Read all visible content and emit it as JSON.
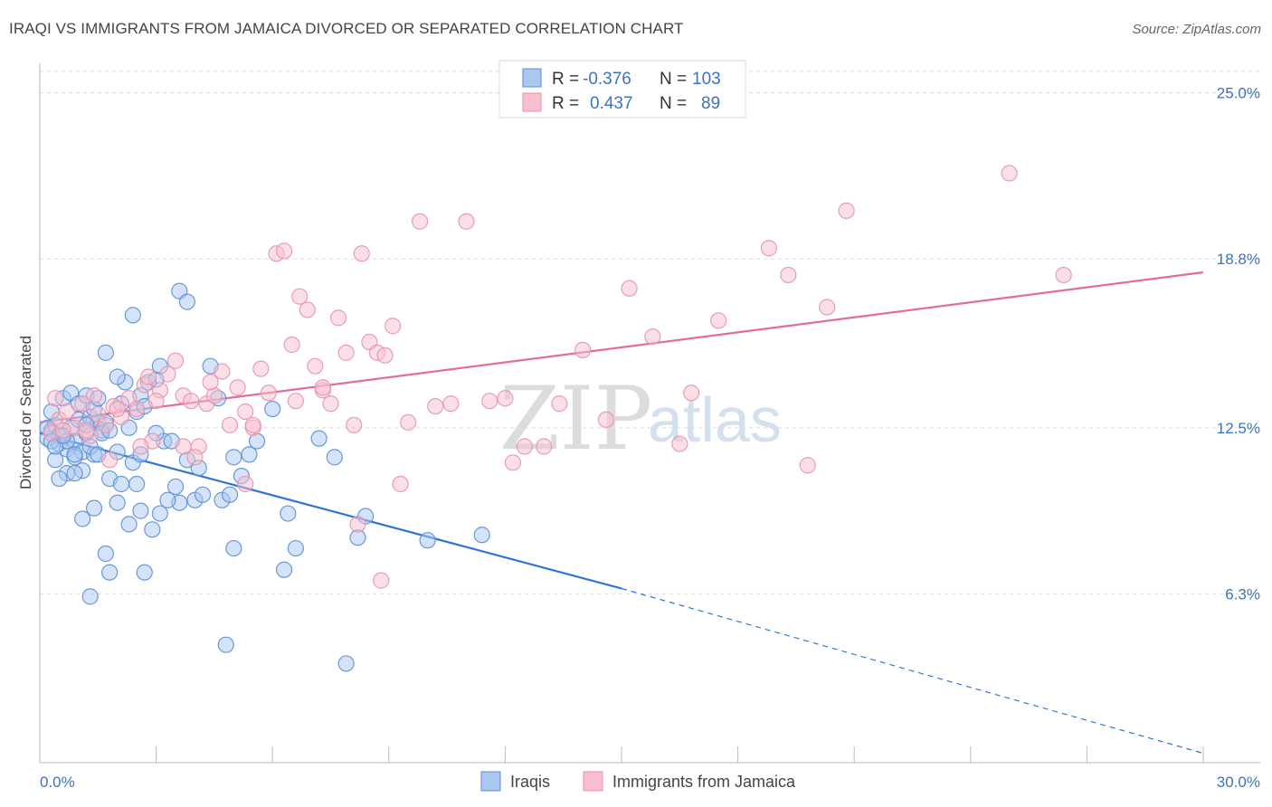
{
  "title": "IRAQI VS IMMIGRANTS FROM JAMAICA DIVORCED OR SEPARATED CORRELATION CHART",
  "source": "Source: ZipAtlas.com",
  "watermark": {
    "zip": "ZIP",
    "atlas": "atlas"
  },
  "colors": {
    "blue_fill": "#a9c7ef",
    "blue_stroke": "#5b8fd6",
    "blue_line": "#2f76d2",
    "pink_fill": "#f7bfd0",
    "pink_stroke": "#e892ae",
    "pink_line": "#e36d98",
    "tick_text": "#3b73c4",
    "grid": "#dddddd"
  },
  "legend": {
    "rows": [
      {
        "r_label": "R =",
        "r_value": "-0.376",
        "n_label": "N =",
        "n_value": "103"
      },
      {
        "r_label": "R =",
        "r_value": "0.437",
        "n_label": "N =",
        "n_value": "89"
      }
    ]
  },
  "chart_data": {
    "type": "scatter",
    "title": "IRAQI VS IMMIGRANTS FROM JAMAICA DIVORCED OR SEPARATED CORRELATION CHART",
    "xlabel": "",
    "ylabel": "Divorced or Separated",
    "xlim": [
      0,
      30
    ],
    "ylim": [
      0,
      26.1
    ],
    "x_tick_labels": [
      "0.0%",
      "30.0%"
    ],
    "y_ticks": [
      6.3,
      12.5,
      18.8,
      25.0
    ],
    "y_tick_labels": [
      "6.3%",
      "12.5%",
      "18.8%",
      "25.0%"
    ],
    "grid": "horizontal dashed",
    "legend_position": "bottom-center",
    "series": [
      {
        "name": "Iraqis",
        "color": "#a9c7ef",
        "trend": {
          "x0": 0,
          "y0": 12.3,
          "x1": 15.0,
          "y1": 6.5,
          "dash_to_x": 30.0,
          "dash_to_y": 0.35
        },
        "points": [
          [
            0.2,
            12.1
          ],
          [
            0.3,
            12.4
          ],
          [
            0.4,
            12.6
          ],
          [
            0.5,
            11.9
          ],
          [
            0.6,
            12.2
          ],
          [
            0.7,
            11.7
          ],
          [
            0.8,
            12.5
          ],
          [
            0.9,
            12.0
          ],
          [
            1.0,
            12.8
          ],
          [
            1.1,
            11.6
          ],
          [
            1.2,
            12.3
          ],
          [
            1.3,
            12.9
          ],
          [
            1.4,
            11.5
          ],
          [
            1.5,
            12.7
          ],
          [
            0.3,
            13.1
          ],
          [
            0.6,
            13.6
          ],
          [
            0.8,
            13.8
          ],
          [
            1.0,
            13.4
          ],
          [
            1.2,
            13.7
          ],
          [
            1.4,
            13.2
          ],
          [
            0.4,
            11.3
          ],
          [
            0.7,
            10.8
          ],
          [
            0.9,
            11.4
          ],
          [
            1.1,
            10.9
          ],
          [
            1.3,
            11.8
          ],
          [
            1.5,
            13.6
          ],
          [
            1.6,
            12.4
          ],
          [
            1.7,
            12.7
          ],
          [
            1.8,
            10.6
          ],
          [
            2.0,
            11.6
          ],
          [
            2.1,
            13.4
          ],
          [
            2.2,
            14.2
          ],
          [
            2.3,
            12.5
          ],
          [
            2.4,
            11.2
          ],
          [
            2.5,
            13.1
          ],
          [
            2.6,
            13.7
          ],
          [
            2.7,
            13.3
          ],
          [
            2.8,
            14.2
          ],
          [
            3.0,
            14.3
          ],
          [
            3.1,
            14.8
          ],
          [
            3.2,
            12.0
          ],
          [
            3.4,
            12.0
          ],
          [
            3.5,
            10.3
          ],
          [
            3.6,
            9.7
          ],
          [
            3.8,
            11.3
          ],
          [
            4.0,
            9.8
          ],
          [
            4.2,
            10.0
          ],
          [
            4.4,
            14.8
          ],
          [
            4.6,
            13.6
          ],
          [
            5.0,
            11.4
          ],
          [
            5.2,
            10.7
          ],
          [
            5.4,
            11.5
          ],
          [
            5.6,
            12.0
          ],
          [
            6.0,
            13.2
          ],
          [
            6.4,
            9.3
          ],
          [
            6.6,
            8.0
          ],
          [
            7.2,
            12.1
          ],
          [
            7.6,
            11.4
          ],
          [
            8.2,
            8.4
          ],
          [
            8.4,
            9.2
          ],
          [
            1.1,
            9.1
          ],
          [
            1.4,
            9.5
          ],
          [
            1.7,
            7.8
          ],
          [
            1.8,
            7.1
          ],
          [
            2.0,
            9.7
          ],
          [
            2.3,
            8.9
          ],
          [
            2.6,
            9.4
          ],
          [
            2.7,
            7.1
          ],
          [
            2.9,
            8.7
          ],
          [
            3.1,
            9.3
          ],
          [
            3.3,
            9.8
          ],
          [
            3.6,
            17.6
          ],
          [
            3.8,
            17.2
          ],
          [
            4.7,
            9.8
          ],
          [
            4.8,
            4.4
          ],
          [
            4.9,
            10.0
          ],
          [
            5.0,
            8.0
          ],
          [
            6.3,
            7.2
          ],
          [
            7.9,
            3.7
          ],
          [
            10.0,
            8.3
          ],
          [
            11.4,
            8.5
          ],
          [
            1.3,
            6.2
          ],
          [
            1.7,
            15.3
          ],
          [
            2.4,
            16.7
          ],
          [
            2.0,
            14.4
          ],
          [
            2.6,
            11.5
          ],
          [
            0.5,
            10.6
          ],
          [
            0.9,
            10.8
          ],
          [
            1.5,
            11.5
          ],
          [
            2.1,
            10.4
          ],
          [
            2.5,
            10.4
          ],
          [
            3.0,
            12.3
          ],
          [
            4.1,
            11.0
          ],
          [
            0.2,
            12.5
          ],
          [
            0.5,
            12.2
          ],
          [
            0.7,
            12.0
          ],
          [
            0.9,
            11.5
          ],
          [
            1.2,
            12.6
          ],
          [
            1.6,
            12.3
          ],
          [
            0.3,
            12.0
          ],
          [
            0.4,
            11.8
          ],
          [
            0.6,
            12.2
          ],
          [
            1.8,
            12.4
          ]
        ]
      },
      {
        "name": "Immigrants from Jamaica",
        "color": "#f7bfd0",
        "trend": {
          "x0": 0,
          "y0": 12.7,
          "x1": 30.0,
          "y1": 18.3
        },
        "points": [
          [
            0.3,
            12.3
          ],
          [
            0.5,
            12.8
          ],
          [
            0.7,
            13.1
          ],
          [
            0.9,
            12.5
          ],
          [
            1.1,
            13.4
          ],
          [
            1.3,
            12.2
          ],
          [
            1.5,
            13.0
          ],
          [
            1.7,
            12.6
          ],
          [
            1.9,
            13.3
          ],
          [
            2.1,
            12.9
          ],
          [
            2.3,
            13.6
          ],
          [
            2.5,
            13.2
          ],
          [
            2.7,
            14.1
          ],
          [
            2.9,
            12.0
          ],
          [
            3.1,
            13.9
          ],
          [
            3.3,
            14.5
          ],
          [
            3.5,
            15.0
          ],
          [
            3.7,
            13.7
          ],
          [
            3.9,
            13.5
          ],
          [
            4.1,
            11.8
          ],
          [
            4.3,
            13.4
          ],
          [
            4.5,
            13.7
          ],
          [
            4.7,
            14.6
          ],
          [
            4.9,
            12.6
          ],
          [
            5.1,
            14.0
          ],
          [
            5.3,
            13.1
          ],
          [
            5.5,
            12.5
          ],
          [
            5.7,
            14.7
          ],
          [
            5.9,
            13.8
          ],
          [
            6.1,
            19.0
          ],
          [
            6.3,
            19.1
          ],
          [
            6.5,
            15.6
          ],
          [
            6.7,
            17.4
          ],
          [
            6.9,
            16.9
          ],
          [
            7.1,
            14.8
          ],
          [
            7.3,
            13.9
          ],
          [
            7.5,
            13.4
          ],
          [
            7.7,
            16.6
          ],
          [
            7.9,
            15.3
          ],
          [
            8.1,
            12.6
          ],
          [
            8.3,
            19.0
          ],
          [
            8.5,
            15.7
          ],
          [
            8.7,
            15.3
          ],
          [
            8.9,
            15.2
          ],
          [
            9.1,
            16.3
          ],
          [
            9.3,
            10.4
          ],
          [
            9.5,
            12.7
          ],
          [
            9.8,
            20.2
          ],
          [
            10.2,
            13.3
          ],
          [
            11.0,
            20.2
          ],
          [
            11.6,
            13.5
          ],
          [
            12.0,
            13.6
          ],
          [
            12.5,
            11.8
          ],
          [
            13.0,
            11.8
          ],
          [
            13.4,
            13.4
          ],
          [
            14.0,
            15.4
          ],
          [
            14.6,
            12.8
          ],
          [
            15.2,
            17.7
          ],
          [
            15.8,
            15.9
          ],
          [
            16.5,
            11.9
          ],
          [
            16.8,
            13.8
          ],
          [
            17.5,
            16.5
          ],
          [
            18.8,
            19.2
          ],
          [
            19.3,
            18.2
          ],
          [
            20.3,
            17.0
          ],
          [
            20.8,
            20.6
          ],
          [
            25.0,
            22.0
          ],
          [
            26.4,
            18.2
          ],
          [
            19.8,
            11.1
          ],
          [
            10.6,
            13.4
          ],
          [
            12.2,
            11.2
          ],
          [
            8.8,
            6.8
          ],
          [
            8.2,
            8.9
          ],
          [
            5.3,
            10.4
          ],
          [
            4.0,
            11.4
          ],
          [
            3.7,
            11.8
          ],
          [
            2.6,
            11.8
          ],
          [
            1.8,
            11.3
          ],
          [
            1.2,
            12.4
          ],
          [
            0.6,
            12.4
          ],
          [
            0.4,
            13.6
          ],
          [
            2.0,
            13.2
          ],
          [
            3.0,
            13.5
          ],
          [
            4.4,
            14.2
          ],
          [
            5.5,
            12.6
          ],
          [
            6.6,
            13.5
          ],
          [
            7.3,
            14.0
          ],
          [
            2.8,
            14.4
          ],
          [
            1.4,
            13.7
          ]
        ]
      }
    ]
  }
}
